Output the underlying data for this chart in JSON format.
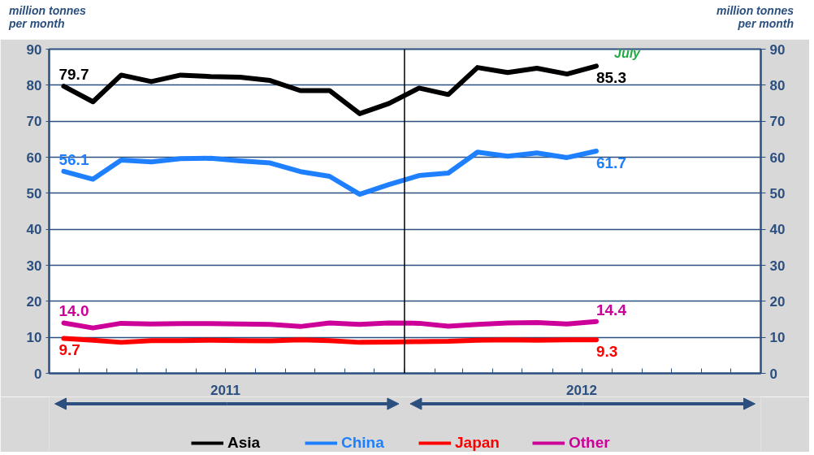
{
  "chart_data": {
    "type": "line",
    "ylabel": "million tonnes per month",
    "y2label": "million tonnes per month",
    "x": [
      "2011-01-16",
      "2011-02-15",
      "2011-03-16",
      "2011-04-16",
      "2011-05-16",
      "2011-06-16",
      "2011-07-16",
      "2011-08-16",
      "2011-09-16",
      "2011-10-16",
      "2011-11-16",
      "2011-12-16",
      "2012-01-16",
      "2012-02-15",
      "2012-03-16",
      "2012-04-16",
      "2012-05-16",
      "2012-06-16",
      "2012-07-16"
    ],
    "series": [
      {
        "name": "Asia",
        "color": "#000000",
        "values": [
          79.7,
          75.4,
          82.8,
          81.0,
          82.8,
          82.4,
          82.2,
          81.3,
          78.5,
          78.5,
          72.1,
          74.9,
          79.2,
          77.4,
          84.9,
          83.5,
          84.7,
          83.1,
          85.3
        ],
        "value_labels": [
          "79.7",
          null,
          null,
          null,
          null,
          null,
          null,
          null,
          null,
          null,
          null,
          null,
          null,
          null,
          null,
          null,
          null,
          null,
          "85.3"
        ]
      },
      {
        "name": "China",
        "color": "#1e80ff",
        "values": [
          56.1,
          53.9,
          59.2,
          58.7,
          59.6,
          59.7,
          59.0,
          58.4,
          56.0,
          54.7,
          49.7,
          52.4,
          54.9,
          55.6,
          61.4,
          60.3,
          61.2,
          59.9,
          61.7
        ],
        "value_labels": [
          "56.1",
          null,
          null,
          null,
          null,
          null,
          null,
          null,
          null,
          null,
          null,
          null,
          null,
          null,
          null,
          null,
          null,
          null,
          "61.7"
        ]
      },
      {
        "name": "Japan",
        "color": "#ff0000",
        "values": [
          9.7,
          9.2,
          8.6,
          9.1,
          9.1,
          9.2,
          9.1,
          9.0,
          9.3,
          9.1,
          8.6,
          8.7,
          8.8,
          8.9,
          9.2,
          9.3,
          9.2,
          9.3,
          9.3
        ],
        "value_labels": [
          "9.7",
          null,
          null,
          null,
          null,
          null,
          null,
          null,
          null,
          null,
          null,
          null,
          null,
          null,
          null,
          null,
          null,
          null,
          "9.3"
        ]
      },
      {
        "name": "Other",
        "color": "#cc0099",
        "values": [
          14.0,
          12.6,
          13.9,
          13.7,
          13.8,
          13.8,
          13.7,
          13.6,
          13.0,
          14.0,
          13.6,
          14.0,
          13.9,
          13.1,
          13.6,
          14.0,
          14.1,
          13.7,
          14.4
        ],
        "value_labels": [
          "14.0",
          null,
          null,
          null,
          null,
          null,
          null,
          null,
          null,
          null,
          null,
          null,
          null,
          null,
          null,
          null,
          null,
          null,
          "14.4"
        ]
      }
    ],
    "xlim": [
      "2011-01-01",
      "2013-01-01"
    ],
    "xticks": [
      {
        "value": "2011-02-01",
        "label": null
      },
      {
        "value": "2011-03-01",
        "label": null
      },
      {
        "value": "2011-04-01",
        "label": null
      },
      {
        "value": "2011-05-01",
        "label": null
      },
      {
        "value": "2011-06-01",
        "label": null
      },
      {
        "value": "2011-07-01",
        "label": "2011"
      },
      {
        "value": "2011-08-01",
        "label": null
      },
      {
        "value": "2011-09-01",
        "label": null
      },
      {
        "value": "2011-10-01",
        "label": null
      },
      {
        "value": "2011-11-01",
        "label": null
      },
      {
        "value": "2011-12-01",
        "label": null
      },
      {
        "value": "2012-01-01",
        "label": null
      },
      {
        "value": "2012-02-01",
        "label": null
      },
      {
        "value": "2012-03-01",
        "label": null
      },
      {
        "value": "2012-04-01",
        "label": null
      },
      {
        "value": "2012-05-01",
        "label": null
      },
      {
        "value": "2012-06-01",
        "label": null
      },
      {
        "value": "2012-07-01",
        "label": "2012"
      },
      {
        "value": "2012-08-01",
        "label": null
      },
      {
        "value": "2012-09-01",
        "label": null
      },
      {
        "value": "2012-10-01",
        "label": null
      },
      {
        "value": "2012-11-01",
        "label": null
      },
      {
        "value": "2012-12-01",
        "label": null
      }
    ],
    "ylim": [
      0,
      90
    ],
    "yticks": [
      0,
      10,
      20,
      30,
      40,
      50,
      60,
      70,
      80,
      90
    ],
    "y2lim": [
      0,
      90
    ],
    "y2ticks": [
      0,
      10,
      20,
      30,
      40,
      50,
      60,
      70,
      80,
      90
    ],
    "ref_lines": [
      {
        "axis": "x",
        "value": "2012-01-01",
        "label": null,
        "color": "#000000"
      }
    ],
    "annotations": [
      {
        "text": "July",
        "x": "2012-07-16",
        "y": 85.3
      }
    ],
    "grid": "y",
    "legend": "bottom",
    "line_style": "solid",
    "marker": "none"
  }
}
